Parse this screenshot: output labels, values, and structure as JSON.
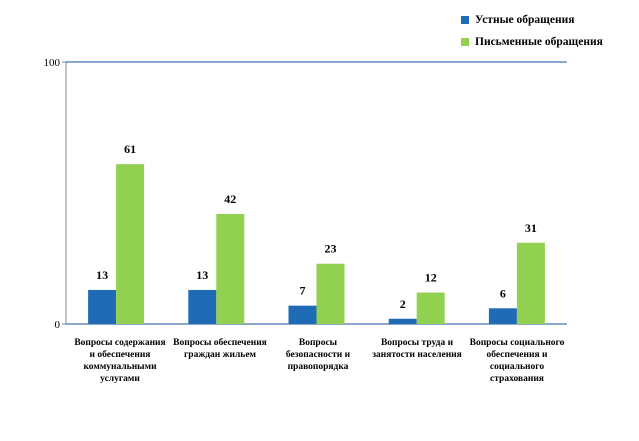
{
  "chart_data": {
    "type": "bar",
    "title": "",
    "xlabel": "",
    "ylabel": "",
    "ylim": [
      0,
      100
    ],
    "yticks": [
      "0",
      "100"
    ],
    "grid": false,
    "legend_position": "top-right",
    "categories": [
      "Вопросы содержания и обеспечения коммунальными услугами",
      "Вопросы обеспечения граждан жильем",
      "Вопросы безопасности и правопорядка",
      "Вопросы труда и занятости населения",
      "Вопросы социального обеспечения и социального страхования"
    ],
    "series": [
      {
        "name": "Устные обращения",
        "color": "#1f6bb5",
        "values": [
          13,
          13,
          7,
          2,
          6
        ]
      },
      {
        "name": "Письменные обращения",
        "color": "#92d050",
        "values": [
          61,
          42,
          23,
          12,
          31
        ]
      }
    ]
  }
}
